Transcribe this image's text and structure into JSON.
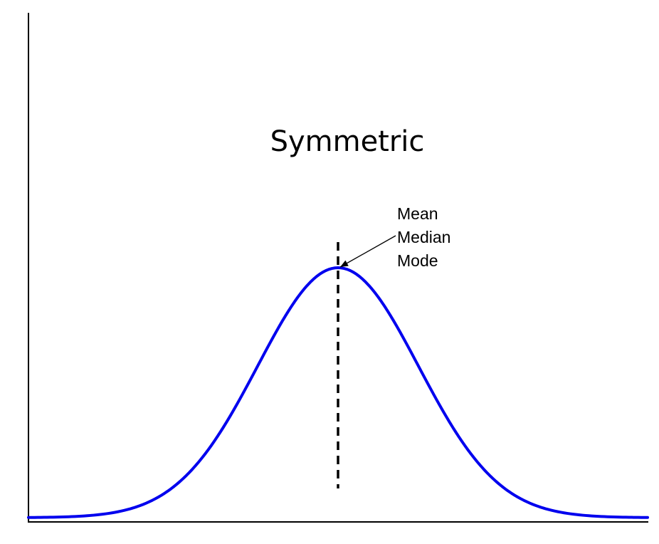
{
  "title": "Symmetric",
  "annotation": {
    "lines": [
      "Mean",
      "Median",
      "Mode"
    ]
  },
  "colors": {
    "curve": "#0000ee",
    "axis": "#000000",
    "center_line": "#000000",
    "text": "#000000"
  },
  "chart_data": {
    "type": "line",
    "distribution": "normal",
    "shape": "symmetric",
    "mean": 0,
    "std": 1,
    "xlim": [
      -3.85,
      3.85
    ],
    "center_marker": {
      "x": 0,
      "style": "dashed",
      "labels": [
        "Mean",
        "Median",
        "Mode"
      ]
    },
    "axes_drawn": [
      "left",
      "bottom"
    ],
    "ticks": false,
    "grid": false
  }
}
